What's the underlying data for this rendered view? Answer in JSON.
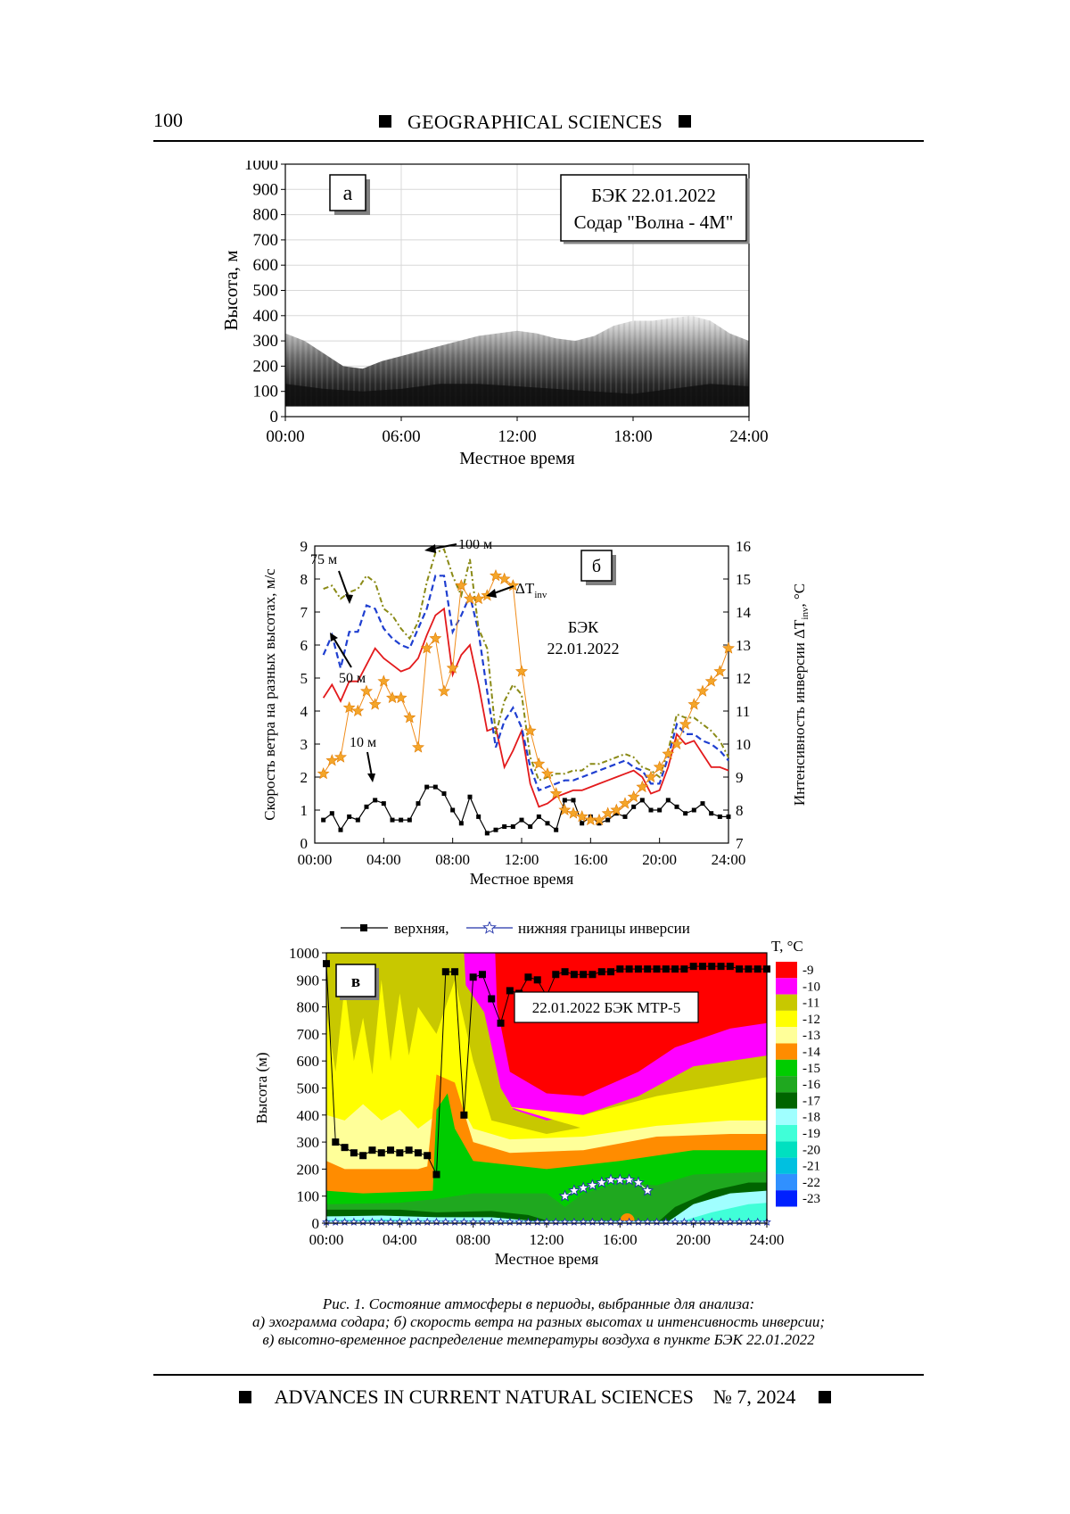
{
  "header": {
    "page_number": "100",
    "journal_section": "GEOGRAPHICAL SCIENCES"
  },
  "figures": [
    {
      "panel": "а",
      "annotation_lines": [
        "БЭК   22.01.2022",
        "Содар \"Волна - 4М\""
      ],
      "chart_data": {
        "type": "heatmap",
        "description_in_image": "sodar echogram",
        "ylabel": "Высота, м",
        "xlabel": "Местное время",
        "ylim": [
          0,
          1000
        ],
        "yticks": [
          "0",
          "100",
          "200",
          "300",
          "400",
          "500",
          "600",
          "700",
          "800",
          "900",
          "1000"
        ],
        "xticks": [
          "00:00",
          "06:00",
          "12:00",
          "18:00",
          "24:00"
        ],
        "grid": true,
        "echo_top_m_by_hour": {
          "x": [
            0,
            1,
            2,
            3,
            4,
            5,
            6,
            7,
            8,
            9,
            10,
            11,
            12,
            13,
            14,
            15,
            16,
            17,
            18,
            19,
            20,
            21,
            22,
            23,
            24
          ],
          "top": [
            330,
            300,
            250,
            200,
            190,
            220,
            240,
            260,
            280,
            300,
            320,
            330,
            340,
            330,
            310,
            300,
            320,
            360,
            380,
            380,
            390,
            400,
            380,
            330,
            300
          ]
        }
      }
    },
    {
      "panel": "б",
      "annotation_lines": [
        "БЭК",
        "22.01.2022"
      ],
      "chart_data": {
        "type": "line",
        "xlabel": "Местное время",
        "ylabel": "Скорость ветра на разных высотах, м/с",
        "ylabel_right": "Интенсивность инверсии ΔT",
        "ylabel_right_sub": "inv",
        "ylabel_right_unit": ", °C",
        "ylim": [
          0,
          9
        ],
        "ylim_right": [
          7,
          16
        ],
        "yticks": [
          "0",
          "1",
          "2",
          "3",
          "4",
          "5",
          "6",
          "7",
          "8",
          "9"
        ],
        "yticks_right": [
          "7",
          "8",
          "9",
          "10",
          "11",
          "12",
          "13",
          "14",
          "15",
          "16"
        ],
        "xticks": [
          "00:00",
          "04:00",
          "08:00",
          "12:00",
          "16:00",
          "20:00",
          "24:00"
        ],
        "xlim": [
          0,
          24
        ],
        "series": [
          {
            "name": "10 м",
            "color": "#000000",
            "axis": "left",
            "x": [
              0.5,
              1,
              1.5,
              2,
              2.5,
              3,
              3.5,
              4,
              4.5,
              5,
              5.5,
              6,
              6.5,
              7,
              7.5,
              8,
              8.5,
              9,
              9.5,
              10,
              10.5,
              11,
              11.5,
              12,
              12.5,
              13,
              13.5,
              14,
              14.5,
              15,
              15.5,
              16,
              16.5,
              17,
              17.5,
              18,
              18.5,
              19,
              19.5,
              20,
              20.5,
              21,
              21.5,
              22,
              22.5,
              23,
              23.5,
              24
            ],
            "y": [
              0.7,
              0.9,
              0.4,
              0.8,
              0.7,
              1.1,
              1.3,
              1.2,
              0.7,
              0.7,
              0.7,
              1.2,
              1.7,
              1.7,
              1.5,
              1.0,
              0.6,
              1.4,
              0.8,
              0.3,
              0.4,
              0.5,
              0.5,
              0.7,
              0.5,
              0.8,
              0.6,
              0.4,
              1.3,
              1.3,
              0.6,
              0.8,
              0.6,
              0.7,
              0.9,
              0.8,
              1.1,
              1.3,
              1.0,
              1.0,
              1.3,
              1.1,
              0.9,
              1.0,
              1.2,
              0.9,
              0.8,
              0.8
            ]
          },
          {
            "name": "50 м",
            "color": "#e31a1c",
            "axis": "left",
            "x": [
              0.5,
              1,
              1.5,
              2,
              2.5,
              3,
              3.5,
              4,
              4.5,
              5,
              5.5,
              6,
              6.5,
              7,
              7.5,
              8,
              8.5,
              9,
              9.5,
              10,
              10.5,
              11,
              11.5,
              12,
              12.5,
              13,
              13.5,
              14,
              14.5,
              15,
              15.5,
              16,
              16.5,
              17,
              17.5,
              18,
              18.5,
              19,
              19.5,
              20,
              20.5,
              21,
              21.5,
              22,
              22.5,
              23,
              23.5,
              24
            ],
            "y": [
              4.4,
              4.8,
              4.3,
              4.9,
              4.9,
              5.4,
              5.9,
              5.6,
              5.4,
              5.2,
              5.3,
              5.6,
              6.3,
              6.9,
              7.1,
              5.1,
              5.7,
              6.0,
              4.8,
              3.4,
              3.5,
              2.3,
              2.8,
              3.4,
              1.8,
              1.1,
              1.2,
              1.4,
              1.5,
              1.6,
              1.6,
              1.7,
              1.8,
              1.9,
              2.0,
              2.1,
              2.2,
              2.0,
              1.5,
              1.6,
              2.3,
              3.3,
              3.0,
              3.1,
              2.7,
              2.3,
              2.3,
              2.2
            ]
          },
          {
            "name": "75 м",
            "color": "#1f3fd0",
            "axis": "left",
            "x": [
              0.5,
              1,
              1.5,
              2,
              2.5,
              3,
              3.5,
              4,
              4.5,
              5,
              5.5,
              6,
              6.5,
              7,
              7.5,
              8,
              8.5,
              9,
              9.5,
              10,
              10.5,
              11,
              11.5,
              12,
              12.5,
              13,
              13.5,
              14,
              14.5,
              15,
              15.5,
              16,
              16.5,
              17,
              17.5,
              18,
              18.5,
              19,
              19.5,
              20,
              20.5,
              21,
              21.5,
              22,
              22.5,
              23,
              23.5,
              24
            ],
            "y": [
              5.7,
              6.3,
              5.3,
              6.4,
              6.4,
              7.2,
              7.1,
              6.5,
              6.2,
              6.0,
              5.9,
              6.5,
              7.1,
              8.1,
              8.1,
              6.4,
              6.9,
              7.5,
              6.4,
              4.6,
              2.9,
              3.7,
              4.1,
              3.5,
              2.3,
              1.6,
              1.7,
              1.8,
              1.9,
              1.9,
              2.0,
              2.1,
              2.2,
              2.3,
              2.4,
              2.5,
              2.3,
              2.2,
              1.8,
              1.8,
              2.6,
              3.6,
              3.3,
              3.3,
              3.1,
              3.0,
              2.8,
              2.5
            ]
          },
          {
            "name": "100 м",
            "color": "#8a8a16",
            "axis": "left",
            "x": [
              0.5,
              1,
              1.5,
              2,
              2.5,
              3,
              3.5,
              4,
              4.5,
              5,
              5.5,
              6,
              6.5,
              7,
              7.5,
              8,
              8.5,
              9,
              9.5,
              10,
              10.5,
              11,
              11.5,
              12,
              12.5,
              13,
              13.5,
              14,
              14.5,
              15,
              15.5,
              16,
              16.5,
              17,
              17.5,
              18,
              18.5,
              19,
              19.5,
              20,
              20.5,
              21,
              21.5,
              22,
              22.5,
              23,
              23.5,
              24
            ],
            "y": [
              7.7,
              7.8,
              7.4,
              7.6,
              7.7,
              8.1,
              7.9,
              7.1,
              6.9,
              6.5,
              6.2,
              6.7,
              7.9,
              8.8,
              8.9,
              8.1,
              7.5,
              8.6,
              6.5,
              5.9,
              3.3,
              4.3,
              4.8,
              4.5,
              2.6,
              1.9,
              2.0,
              2.1,
              2.1,
              2.2,
              2.2,
              2.4,
              2.4,
              2.5,
              2.6,
              2.7,
              2.6,
              2.3,
              2.2,
              2.0,
              2.8,
              3.9,
              3.8,
              3.8,
              3.6,
              3.4,
              3.1,
              2.6
            ]
          },
          {
            "name": "ΔT",
            "name_sub": "inv",
            "color": "#f08c1a",
            "axis": "right",
            "x": [
              0.5,
              1,
              1.5,
              2,
              2.5,
              3,
              3.5,
              4,
              4.5,
              5,
              5.5,
              6,
              6.5,
              7,
              7.5,
              8,
              8.5,
              9,
              9.5,
              10,
              10.5,
              11,
              11.5,
              12,
              12.5,
              13,
              13.5,
              14,
              14.5,
              15,
              15.5,
              16,
              16.5,
              17,
              17.5,
              18,
              18.5,
              19,
              19.5,
              20,
              20.5,
              21,
              21.5,
              22,
              22.5,
              23,
              23.5,
              24
            ],
            "y": [
              9.1,
              9.5,
              9.6,
              11.1,
              11.0,
              11.6,
              11.2,
              11.9,
              11.4,
              11.4,
              10.8,
              9.9,
              12.9,
              13.2,
              11.6,
              12.3,
              14.8,
              14.4,
              14.4,
              14.5,
              15.1,
              15.0,
              14.8,
              12.2,
              10.4,
              9.4,
              9.1,
              8.5,
              8.0,
              7.9,
              7.8,
              7.7,
              7.7,
              7.9,
              8.0,
              8.2,
              8.4,
              8.7,
              9.0,
              9.3,
              9.7,
              10.0,
              10.6,
              11.2,
              11.6,
              11.9,
              12.2,
              12.9
            ]
          }
        ],
        "annotations": [
          "75 м",
          "100 м",
          "50 м",
          "10 м"
        ]
      }
    },
    {
      "panel": "в",
      "annotation": "22.01.2022   БЭК   МТР-5",
      "legend": {
        "upper": "верхняя,",
        "lower": "нижняя границы инверсии"
      },
      "colorbar_title": "T, °C",
      "colorbar": [
        {
          "label": "-9",
          "color": "#ff0000"
        },
        {
          "label": "-10",
          "color": "#ff00ff"
        },
        {
          "label": "-11",
          "color": "#c8c800"
        },
        {
          "label": "-12",
          "color": "#ffff00"
        },
        {
          "label": "-13",
          "color": "#ffff99"
        },
        {
          "label": "-14",
          "color": "#ff8c00"
        },
        {
          "label": "-15",
          "color": "#00cc00"
        },
        {
          "label": "-16",
          "color": "#1fa81f"
        },
        {
          "label": "-17",
          "color": "#006400"
        },
        {
          "label": "-18",
          "color": "#a0ffff"
        },
        {
          "label": "-19",
          "color": "#40ffd8"
        },
        {
          "label": "-20",
          "color": "#00e0c0"
        },
        {
          "label": "-21",
          "color": "#00c0e0"
        },
        {
          "label": "-22",
          "color": "#3090ff"
        },
        {
          "label": "-23",
          "color": "#0020ff"
        }
      ],
      "chart_data": {
        "type": "heatmap",
        "ylabel": "Высота (м)",
        "xlabel": "Местное время",
        "ylim": [
          0,
          1000
        ],
        "xlim": [
          0,
          24
        ],
        "yticks": [
          "0",
          "100",
          "200",
          "300",
          "400",
          "500",
          "600",
          "700",
          "800",
          "900",
          "1000"
        ],
        "xticks": [
          "00:00",
          "04:00",
          "08:00",
          "12:00",
          "16:00",
          "20:00",
          "24:00"
        ],
        "upper_inversion_boundary": {
          "x": [
            0,
            0.5,
            1,
            1.5,
            2,
            2.5,
            3,
            3.5,
            4,
            4.5,
            5,
            5.5,
            6,
            6.5,
            7,
            7.5,
            8,
            8.5,
            9,
            9.5,
            10,
            10.5,
            11,
            11.5,
            12,
            12.5,
            13,
            13.5,
            14,
            14.5,
            15,
            15.5,
            16,
            16.5,
            17,
            17.5,
            18,
            18.5,
            19,
            19.5,
            20,
            20.5,
            21,
            21.5,
            22,
            22.5,
            23,
            23.5,
            24
          ],
          "y": [
            960,
            300,
            280,
            260,
            250,
            270,
            260,
            270,
            260,
            270,
            260,
            250,
            180,
            930,
            930,
            400,
            910,
            920,
            830,
            740,
            860,
            850,
            910,
            900,
            840,
            920,
            930,
            920,
            920,
            920,
            930,
            930,
            940,
            940,
            940,
            940,
            940,
            940,
            940,
            940,
            950,
            950,
            950,
            950,
            950,
            940,
            940,
            940,
            940
          ]
        },
        "lower_inversion_boundary": {
          "x": [
            13,
            13.5,
            14,
            14.5,
            15,
            15.5,
            16,
            16.5,
            17,
            17.5
          ],
          "y": [
            100,
            120,
            130,
            140,
            150,
            160,
            160,
            160,
            150,
            120
          ]
        }
      }
    }
  ],
  "caption_lines": [
    "Рис. 1. Состояние атмосферы в периоды, выбранные для анализа:",
    "а) эхограмма содара; б) скорость ветра на разных высотах и интенсивность инверсии;",
    "в) высотно-временное распределение температуры воздуха в пункте БЭК 22.01.2022"
  ],
  "footer": {
    "journal": "ADVANCES IN CURRENT NATURAL SCIENCES",
    "issue": "№ 7, 2024"
  }
}
